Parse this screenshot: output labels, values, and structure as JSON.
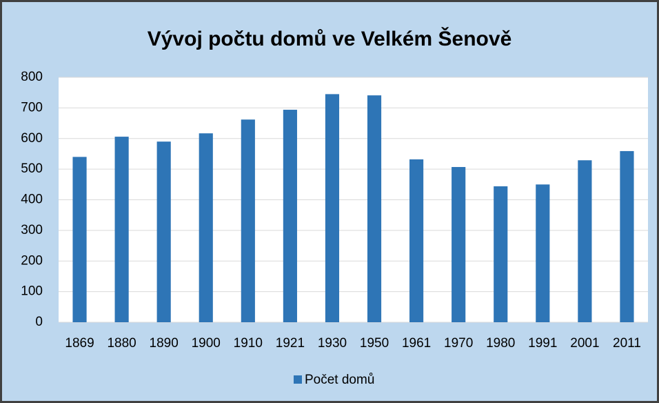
{
  "chart_data": {
    "type": "bar",
    "title": "Vývoj počtu domů ve Velkém Šenově",
    "categories": [
      "1869",
      "1880",
      "1890",
      "1900",
      "1910",
      "1921",
      "1930",
      "1950",
      "1961",
      "1970",
      "1980",
      "1991",
      "2001",
      "2011"
    ],
    "series": [
      {
        "name": "Počet domů",
        "color": "#2e75b6",
        "values": [
          540,
          606,
          590,
          617,
          662,
          694,
          745,
          741,
          532,
          507,
          444,
          450,
          529,
          559
        ]
      }
    ],
    "ylim": [
      0,
      800
    ],
    "yticks": [
      0,
      100,
      200,
      300,
      400,
      500,
      600,
      700,
      800
    ],
    "grid": true,
    "legend": "bottom"
  }
}
